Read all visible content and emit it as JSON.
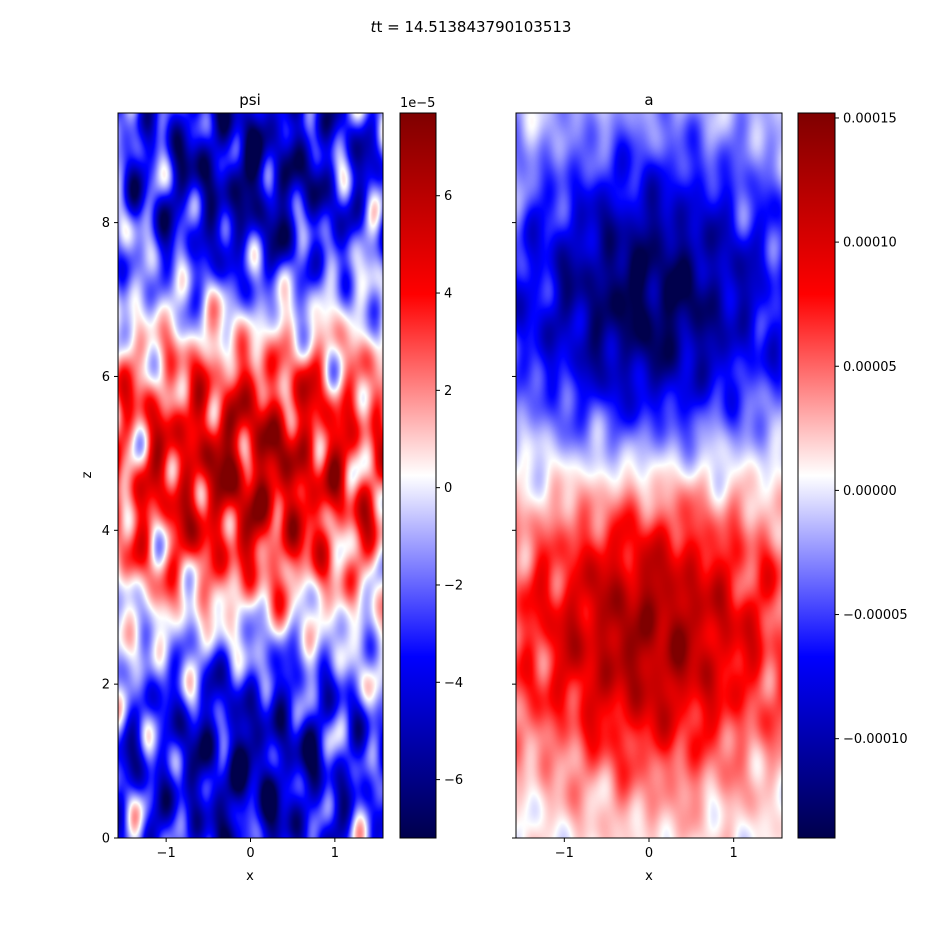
{
  "figure": {
    "suptitle_prefix": "t = ",
    "suptitle_value": "14.513843790103513"
  },
  "chart_data": [
    {
      "type": "heatmap",
      "title": "psi",
      "xlabel": "x",
      "ylabel": "z",
      "xlim": [
        -1.5708,
        1.5708
      ],
      "ylim": [
        0,
        9.4248
      ],
      "x_ticks": [
        -1,
        0,
        1
      ],
      "x_tick_labels": [
        "−1",
        "0",
        "1"
      ],
      "y_ticks": [
        0,
        2,
        4,
        6,
        8
      ],
      "y_tick_labels": [
        "0",
        "2",
        "4",
        "6",
        "8"
      ],
      "colormap": "seismic",
      "colormap_stops": [
        "#00004c",
        "#0000ff",
        "#ffffff",
        "#ff0000",
        "#7f0000"
      ],
      "pattern": {
        "field_scale": 7.2e-05,
        "bands": [
          {
            "z": 0.9,
            "amplitude": -0.78
          },
          {
            "z": 4.8,
            "amplitude": 0.85
          },
          {
            "z": 8.6,
            "amplitude": -0.8
          }
        ],
        "noise_level": 0.55
      },
      "colorbar": {
        "min": -7.2e-05,
        "max": 7.7e-05,
        "ticks": [
          -6e-05,
          -4e-05,
          -2e-05,
          0,
          2e-05,
          4e-05,
          6e-05
        ],
        "tick_labels": [
          "−6",
          "−4",
          "−2",
          "0",
          "2",
          "4",
          "6"
        ],
        "offset_label": "1e−5"
      }
    },
    {
      "type": "heatmap",
      "title": "a",
      "xlabel": "x",
      "xlim": [
        -1.5708,
        1.5708
      ],
      "ylim": [
        0,
        9.4248
      ],
      "x_ticks": [
        -1,
        0,
        1
      ],
      "x_tick_labels": [
        "−1",
        "0",
        "1"
      ],
      "y_ticks": [
        0,
        2,
        4,
        6,
        8
      ],
      "y_labels_shown": false,
      "colormap": "seismic",
      "colormap_stops": [
        "#00004c",
        "#0000ff",
        "#ffffff",
        "#ff0000",
        "#7f0000"
      ],
      "pattern": {
        "field_scale": 0.000145,
        "bands": [
          {
            "z": 2.7,
            "amplitude": 0.92
          },
          {
            "z": 7.0,
            "amplitude": -0.95
          }
        ],
        "noise_level": 0.22
      },
      "colorbar": {
        "min": -0.00014,
        "max": 0.000152,
        "ticks": [
          -0.0001,
          -5e-05,
          0,
          5e-05,
          0.0001,
          0.00015
        ],
        "tick_labels": [
          "−0.00010",
          "−0.00005",
          "0.00000",
          "0.00005",
          "0.00010",
          "0.00015"
        ],
        "offset_label": ""
      }
    }
  ]
}
